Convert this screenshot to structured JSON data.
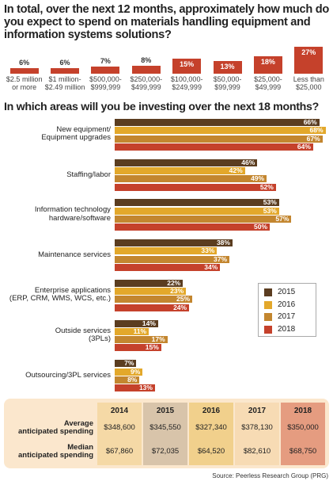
{
  "chart_data": [
    {
      "type": "bar",
      "title": "In total, over the next 12 months, approximately how much do you expect to spend on materials handling equipment and information systems solutions?",
      "categories": [
        "$2.5 million\nor more",
        "$1 million-\n$2.49 million",
        "$500,000-\n$999,999",
        "$250,000-\n$499,999",
        "$100,000-\n$249,999",
        "$50,000-\n$99,999",
        "$25,000-\n$49,999",
        "Less than\n$25,000"
      ],
      "values": [
        6,
        6,
        7,
        8,
        15,
        13,
        18,
        27
      ],
      "value_labels": [
        "6%",
        "6%",
        "7%",
        "8%",
        "15%",
        "13%",
        "18%",
        "27%"
      ],
      "color": "#c5412b"
    },
    {
      "type": "hbar",
      "title": "In which areas will you be investing over the next 18 months?",
      "categories": [
        "New equipment/\nEquipment upgrades",
        "Staffing/labor",
        "Information technology\nhardware/software",
        "Maintenance services",
        "Enterprise applications\n(ERP, CRM, WMS, WCS, etc.)",
        "Outside services\n(3PLs)",
        "Outsourcing/3PL services"
      ],
      "series": [
        {
          "name": "2015",
          "color": "#5b3d20",
          "values": [
            66,
            46,
            53,
            38,
            22,
            14,
            7
          ],
          "value_labels": [
            "66%",
            "46%",
            "53%",
            "38%",
            "22%",
            "14%",
            "7%"
          ]
        },
        {
          "name": "2016",
          "color": "#e3a82b",
          "values": [
            68,
            42,
            53,
            33,
            23,
            11,
            9
          ],
          "value_labels": [
            "68%",
            "42%",
            "53%",
            "33%",
            "23%",
            "11%",
            "9%"
          ]
        },
        {
          "name": "2017",
          "color": "#c3862f",
          "values": [
            67,
            49,
            57,
            37,
            25,
            17,
            8
          ],
          "value_labels": [
            "67%",
            "49%",
            "57%",
            "37%",
            "25%",
            "17%",
            "8%"
          ]
        },
        {
          "name": "2018",
          "color": "#c5412b",
          "values": [
            64,
            52,
            50,
            34,
            24,
            15,
            13
          ],
          "value_labels": [
            "64%",
            "52%",
            "50%",
            "34%",
            "24%",
            "15%",
            "13%"
          ]
        }
      ],
      "legend": "lower right"
    }
  ],
  "table": {
    "columns": [
      "2014",
      "2015",
      "2016",
      "2017",
      "2018"
    ],
    "column_colors": [
      "#f5d9a6",
      "#d8c4aa",
      "#f1d08c",
      "#f7dbb4",
      "#e59c80"
    ],
    "rows": [
      {
        "label": "Average\nanticipated spending",
        "cells": [
          "$348,600",
          "$345,550",
          "$327,340",
          "$378,130",
          "$350,000"
        ]
      },
      {
        "label": "Median\nanticipated spending",
        "cells": [
          "$67,860",
          "$72,035",
          "$64,520",
          "$82,610",
          "$68,750"
        ]
      }
    ]
  },
  "source": "Source: Peerless Research Group (PRG)"
}
